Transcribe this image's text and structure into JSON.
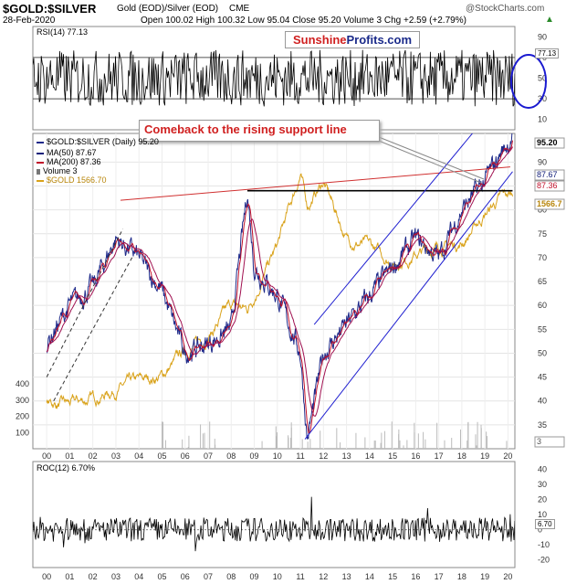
{
  "header": {
    "symbol": "$GOLD:$SILVER",
    "description": "Gold (EOD)/Silver (EOD)",
    "exchange": "CME",
    "date": "28-Feb-2020",
    "quote": "Open 100.02  High 100.32  Low 95.04  Close 95.20  Volume 3  Chg +2.59 (+2.79%)",
    "arrow": "▲",
    "brand": "@StockCharts.com"
  },
  "watermark": {
    "part1": "Sunshine",
    "part2": "Profits.com"
  },
  "annotation": "Comeback to the rising support line",
  "colors": {
    "ratio": "#1f2a8a",
    "ma50": "#14207a",
    "ma200": "#c0102a",
    "gold": "#d9a21a",
    "trend": "#2020d0",
    "resist": "#d03030",
    "circle": "#1a1ad0",
    "rsi": "#000000",
    "roc": "#000000"
  },
  "legend": {
    "main": "$GOLD:$SILVER (Daily) 95.20",
    "ma50": "MA(50) 87.67",
    "ma200": "MA(200) 87.36",
    "volume": "Volume 3",
    "gold": "$GOLD 1566.70"
  },
  "rsi": {
    "label": "RSI(14) 77.13",
    "value_tag": "77.13",
    "ticks": [
      "90",
      "70",
      "50",
      "30",
      "10"
    ]
  },
  "roc": {
    "label": "ROC(12) 6.70%",
    "value_tag": "6.70",
    "ticks": [
      "40",
      "30",
      "20",
      "10",
      "0",
      "-10",
      "-20"
    ]
  },
  "price_axis": {
    "ticks": [
      "90",
      "85",
      "80",
      "75",
      "70",
      "65",
      "60",
      "55",
      "50",
      "45",
      "40",
      "35"
    ],
    "tags": [
      "95.20",
      "87.67",
      "87.36",
      "1566.7",
      "3"
    ]
  },
  "gold_axis": {
    "ticks": [
      "400",
      "300",
      "200",
      "100"
    ]
  },
  "x_axis": {
    "ticks": [
      "00",
      "01",
      "02",
      "03",
      "04",
      "05",
      "06",
      "07",
      "08",
      "09",
      "10",
      "11",
      "12",
      "13",
      "14",
      "15",
      "16",
      "17",
      "18",
      "19",
      "20"
    ]
  },
  "chart_data": {
    "type": "line",
    "title": "$GOLD:$SILVER Gold (EOD)/Silver (EOD) CME",
    "x": [
      "2000",
      "2001",
      "2002",
      "2003",
      "2004",
      "2005",
      "2006",
      "2007",
      "2008",
      "2008.7",
      "2009",
      "2010",
      "2011",
      "2011.3",
      "2012",
      "2013",
      "2014",
      "2015",
      "2016",
      "2017",
      "2018",
      "2019",
      "2019.7",
      "2020.2"
    ],
    "series": [
      {
        "name": "$GOLD:$SILVER",
        "values": [
          52,
          60,
          64,
          74,
          70,
          63,
          50,
          52,
          55,
          84,
          68,
          62,
          50,
          32,
          50,
          56,
          62,
          68,
          74,
          70,
          80,
          86,
          92,
          95.2
        ]
      },
      {
        "name": "$GOLD",
        "values": [
          280,
          270,
          310,
          370,
          410,
          450,
          600,
          700,
          880,
          860,
          950,
          1250,
          1700,
          1500,
          1650,
          1300,
          1250,
          1150,
          1200,
          1250,
          1270,
          1450,
          1550,
          1566.7
        ]
      }
    ],
    "ylim": [
      30,
      96
    ],
    "gold_ylim": [
      0,
      1950
    ],
    "annotations": [
      "Comeback to the rising support line"
    ]
  }
}
